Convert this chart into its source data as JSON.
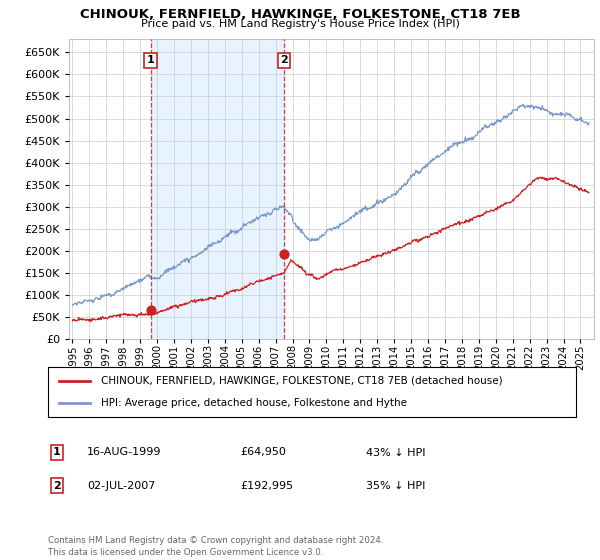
{
  "title": "CHINOUK, FERNFIELD, HAWKINGE, FOLKESTONE, CT18 7EB",
  "subtitle": "Price paid vs. HM Land Registry's House Price Index (HPI)",
  "ytick_values": [
    0,
    50000,
    100000,
    150000,
    200000,
    250000,
    300000,
    350000,
    400000,
    450000,
    500000,
    550000,
    600000,
    650000
  ],
  "ylim": [
    0,
    680000
  ],
  "xlim_start": 1994.8,
  "xlim_end": 2025.8,
  "hpi_color": "#7799cc",
  "hpi_fill_color": "#ddeeff",
  "price_color": "#cc2222",
  "marker1_date": 1999.62,
  "marker1_price": 64950,
  "marker2_date": 2007.5,
  "marker2_price": 192995,
  "legend_line1": "CHINOUK, FERNFIELD, HAWKINGE, FOLKESTONE, CT18 7EB (detached house)",
  "legend_line2": "HPI: Average price, detached house, Folkestone and Hythe",
  "marker1_text": "16-AUG-1999",
  "marker1_value": "£64,950",
  "marker1_pct": "43% ↓ HPI",
  "marker2_text": "02-JUL-2007",
  "marker2_value": "£192,995",
  "marker2_pct": "35% ↓ HPI",
  "footnote": "Contains HM Land Registry data © Crown copyright and database right 2024.\nThis data is licensed under the Open Government Licence v3.0.",
  "background_color": "#ffffff",
  "grid_color": "#cccccc"
}
